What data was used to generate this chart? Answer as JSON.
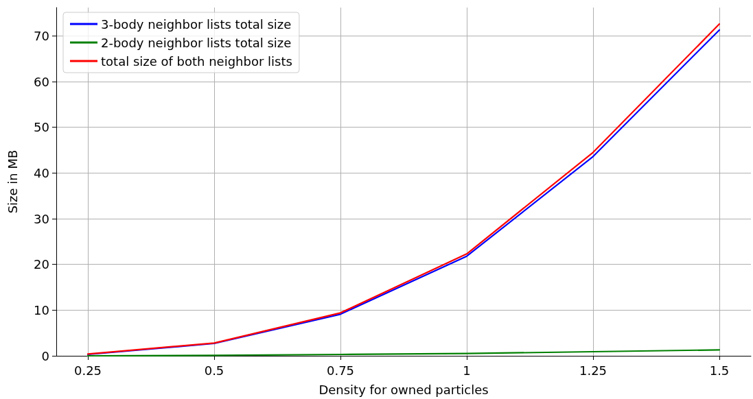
{
  "chart_data": {
    "type": "line",
    "xlabel": "Density for owned particles",
    "ylabel": "Size in MB",
    "x": [
      0.25,
      0.5,
      0.75,
      1,
      1.25,
      1.5
    ],
    "series": [
      {
        "name": "3-body neighbor lists total size",
        "color": "#0000ff",
        "values": [
          0.3,
          2.7,
          9.1,
          21.8,
          43.6,
          71.3
        ]
      },
      {
        "name": "2-body neighbor lists total size",
        "color": "#008000",
        "values": [
          0,
          0.1,
          0.3,
          0.5,
          0.9,
          1.3
        ]
      },
      {
        "name": "total size of both neighbor lists",
        "color": "#ff0000",
        "values": [
          0.4,
          2.8,
          9.4,
          22.3,
          44.5,
          72.6
        ]
      }
    ],
    "xlim": [
      0.1875,
      1.5625
    ],
    "xticks": [
      0.25,
      0.5,
      0.75,
      1,
      1.25,
      1.5
    ],
    "ylim": [
      0,
      76.2
    ],
    "yticks": [
      0,
      10,
      20,
      30,
      40,
      50,
      60,
      70
    ],
    "grid": true,
    "legend": "top left",
    "marker": "none",
    "line_style": "solid"
  }
}
